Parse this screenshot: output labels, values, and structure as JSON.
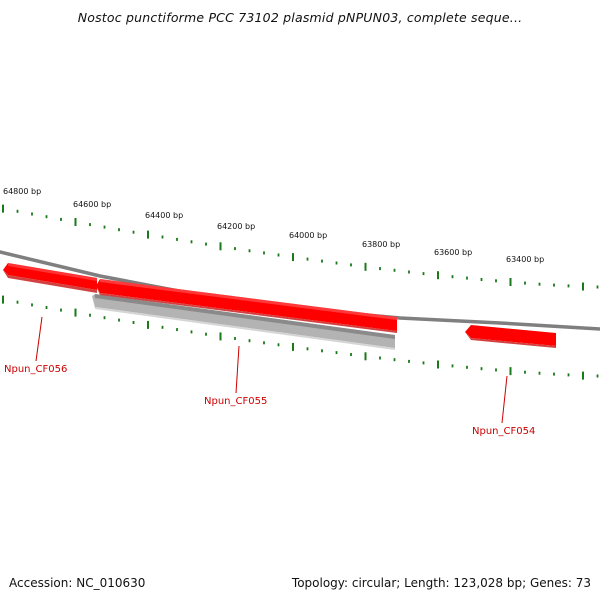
{
  "title": "Nostoc punctiforme PCC 73102 plasmid pNPUN03, complete seque...",
  "footer": {
    "accession": "Accession: NC_010630",
    "summary": "Topology: circular; Length: 123,028 bp; Genes: 73"
  },
  "colors": {
    "backbone": "#7f7f7f",
    "gene_plus": "#ff0000",
    "gene_minus": "#b3b3b3",
    "tick": "#1a7a1a",
    "gene_label": "#cc0000"
  },
  "scale_labels": [
    "64800 bp",
    "64600 bp",
    "64400 bp",
    "64200 bp",
    "64000 bp",
    "63800 bp",
    "63600 bp",
    "63400 bp"
  ],
  "genes": [
    {
      "label": "Npun_CF056",
      "strand": "+"
    },
    {
      "label": "Npun_CF055",
      "strand": "-"
    },
    {
      "label": "Npun_CF054",
      "strand": "+"
    }
  ]
}
